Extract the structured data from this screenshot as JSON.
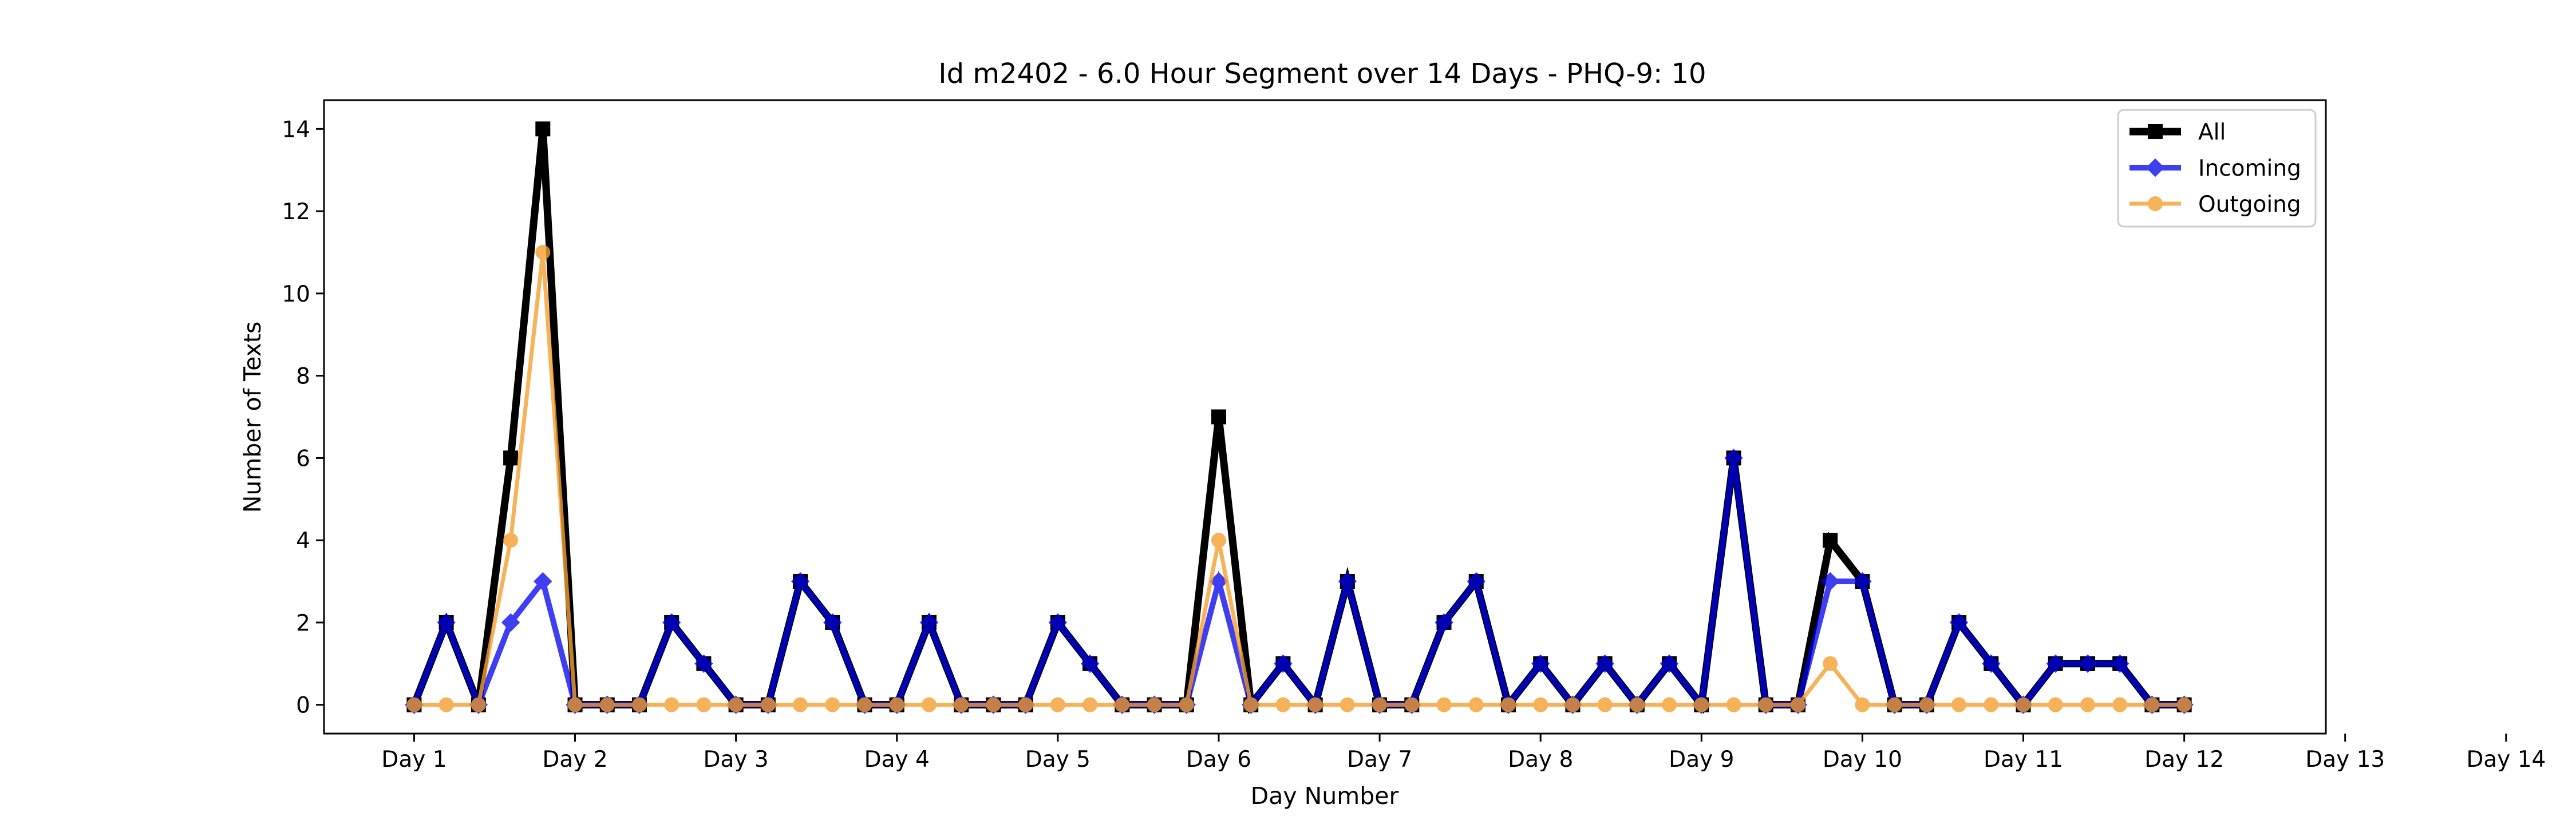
{
  "chart_data": {
    "type": "line",
    "title": "Id m2402 - 6.0 Hour Segment over 14 Days - PHQ-9: 10",
    "xlabel": "Day Number",
    "ylabel": "Number of Texts",
    "x_tick_labels": [
      "Day 1",
      "Day 2",
      "Day 3",
      "Day 4",
      "Day 5",
      "Day 6",
      "Day 7",
      "Day 8",
      "Day 9",
      "Day 10",
      "Day 11",
      "Day 12",
      "Day 13",
      "Day 14"
    ],
    "y_ticks": [
      0,
      2,
      4,
      6,
      8,
      10,
      12,
      14
    ],
    "ylim": [
      -0.7,
      14.7
    ],
    "xlim": [
      -0.14,
      2.97
    ],
    "x_step": 0.05,
    "legend_position": "top-right",
    "grid": false,
    "series": [
      {
        "name": "All",
        "color": "#000000",
        "marker": "square",
        "values": [
          0,
          2,
          0,
          6,
          14,
          0,
          0,
          0,
          2,
          1,
          0,
          0,
          3,
          2,
          0,
          0,
          2,
          0,
          0,
          0,
          2,
          1,
          0,
          0,
          0,
          7,
          0,
          1,
          0,
          3,
          0,
          0,
          2,
          3,
          0,
          1,
          0,
          1,
          0,
          1,
          0,
          6,
          0,
          0,
          4,
          3,
          0,
          0,
          2,
          1,
          0,
          1,
          1,
          1,
          0,
          0
        ]
      },
      {
        "name": "Incoming",
        "color": "#0000ee",
        "marker": "diamond",
        "values": [
          0,
          2,
          0,
          2,
          3,
          0,
          0,
          0,
          2,
          1,
          0,
          0,
          3,
          2,
          0,
          0,
          2,
          0,
          0,
          0,
          2,
          1,
          0,
          0,
          0,
          3,
          0,
          1,
          0,
          3,
          0,
          0,
          2,
          3,
          0,
          1,
          0,
          1,
          0,
          1,
          0,
          6,
          0,
          0,
          3,
          3,
          0,
          0,
          2,
          1,
          0,
          1,
          1,
          1,
          0,
          0
        ]
      },
      {
        "name": "Outgoing",
        "color": "#f5a030",
        "marker": "circle",
        "values": [
          0,
          0,
          0,
          4,
          11,
          0,
          0,
          0,
          0,
          0,
          0,
          0,
          0,
          0,
          0,
          0,
          0,
          0,
          0,
          0,
          0,
          0,
          0,
          0,
          0,
          4,
          0,
          0,
          0,
          0,
          0,
          0,
          0,
          0,
          0,
          0,
          0,
          0,
          0,
          0,
          0,
          0,
          0,
          0,
          1,
          0,
          0,
          0,
          0,
          0,
          0,
          0,
          0,
          0,
          0,
          0
        ]
      }
    ]
  }
}
